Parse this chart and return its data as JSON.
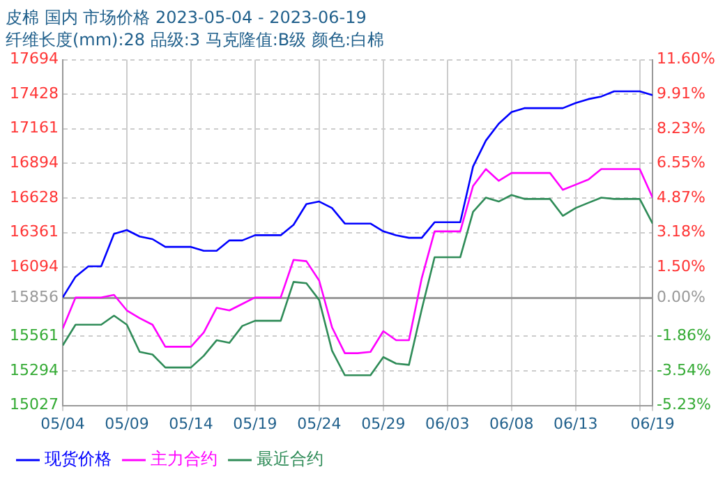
{
  "chart_data": {
    "type": "line",
    "title": "皮棉 国内 市场价格 2023-05-04 - 2023-06-19",
    "subtitle": "纤维长度(mm):28 品级:3 马克隆值:B级 颜色:白棉",
    "x": [
      "2023-05-04",
      "2023-05-05",
      "2023-05-06",
      "2023-05-07",
      "2023-05-08",
      "2023-05-09",
      "2023-05-10",
      "2023-05-11",
      "2023-05-12",
      "2023-05-13",
      "2023-05-14",
      "2023-05-15",
      "2023-05-16",
      "2023-05-17",
      "2023-05-18",
      "2023-05-19",
      "2023-05-20",
      "2023-05-21",
      "2023-05-22",
      "2023-05-23",
      "2023-05-24",
      "2023-05-25",
      "2023-05-26",
      "2023-05-27",
      "2023-05-28",
      "2023-05-29",
      "2023-05-30",
      "2023-05-31",
      "2023-06-01",
      "2023-06-02",
      "2023-06-03",
      "2023-06-04",
      "2023-06-05",
      "2023-06-06",
      "2023-06-07",
      "2023-06-08",
      "2023-06-09",
      "2023-06-10",
      "2023-06-11",
      "2023-06-12",
      "2023-06-13",
      "2023-06-14",
      "2023-06-15",
      "2023-06-16",
      "2023-06-17",
      "2023-06-18",
      "2023-06-19"
    ],
    "series": [
      {
        "name": "现货价格",
        "color": "#0000ff",
        "values": [
          15860,
          16020,
          16100,
          16100,
          16350,
          16380,
          16330,
          16310,
          16250,
          16250,
          16250,
          16220,
          16220,
          16300,
          16300,
          16340,
          16340,
          16340,
          16420,
          16580,
          16600,
          16550,
          16430,
          16430,
          16430,
          16370,
          16340,
          16320,
          16320,
          16440,
          16440,
          16440,
          16870,
          17070,
          17200,
          17290,
          17320,
          17320,
          17320,
          17320,
          17360,
          17390,
          17410,
          17450,
          17450,
          17450,
          17420
        ]
      },
      {
        "name": "主力合约",
        "color": "#ff00ff",
        "values": [
          15620,
          15860,
          15860,
          15860,
          15880,
          15760,
          15700,
          15650,
          15480,
          15480,
          15480,
          15590,
          15780,
          15760,
          15810,
          15860,
          15860,
          15860,
          16150,
          16140,
          15990,
          15630,
          15430,
          15430,
          15440,
          15600,
          15530,
          15530,
          16010,
          16370,
          16370,
          16370,
          16720,
          16850,
          16760,
          16820,
          16820,
          16820,
          16820,
          16690,
          16730,
          16770,
          16850,
          16850,
          16850,
          16850,
          16630
        ]
      },
      {
        "name": "最近合约",
        "color": "#2e8b57",
        "values": [
          15490,
          15650,
          15650,
          15650,
          15720,
          15650,
          15440,
          15420,
          15320,
          15320,
          15320,
          15410,
          15530,
          15510,
          15640,
          15680,
          15680,
          15680,
          15980,
          15970,
          15840,
          15450,
          15260,
          15260,
          15260,
          15400,
          15350,
          15340,
          15770,
          16170,
          16170,
          16170,
          16520,
          16630,
          16600,
          16650,
          16620,
          16620,
          16620,
          16490,
          16550,
          16590,
          16630,
          16620,
          16620,
          16620,
          16430
        ]
      }
    ],
    "xlim": [
      "2023-05-04",
      "2023-06-19"
    ],
    "xticks": [
      {
        "value": "2023-05-04",
        "label": "05/04"
      },
      {
        "value": "2023-05-09",
        "label": "05/09"
      },
      {
        "value": "2023-05-14",
        "label": "05/14"
      },
      {
        "value": "2023-05-19",
        "label": "05/19"
      },
      {
        "value": "2023-05-24",
        "label": "05/24"
      },
      {
        "value": "2023-05-29",
        "label": "05/29"
      },
      {
        "value": "2023-06-03",
        "label": "06/03"
      },
      {
        "value": "2023-06-08",
        "label": "06/08"
      },
      {
        "value": "2023-06-13",
        "label": "06/13"
      },
      {
        "value": "2023-06-18",
        "label": null
      },
      {
        "value": "2023-06-19",
        "label": "06/19"
      }
    ],
    "ylim": [
      15027,
      17694
    ],
    "yticks": [
      15027,
      15294,
      15561,
      15856,
      16094,
      16361,
      16628,
      16894,
      17161,
      17428,
      17694
    ],
    "y2lim": [
      -5.23,
      11.6
    ],
    "y2ticks": [
      {
        "value": -5.23,
        "label": "-5.23%"
      },
      {
        "value": -3.54,
        "label": "-3.54%"
      },
      {
        "value": -1.86,
        "label": "-1.86%"
      },
      {
        "value": 0,
        "label": "0.00%"
      },
      {
        "value": 1.5,
        "label": "1.50%"
      },
      {
        "value": 3.18,
        "label": "3.18%"
      },
      {
        "value": 4.87,
        "label": "4.87%"
      },
      {
        "value": 6.55,
        "label": "6.55%"
      },
      {
        "value": 8.23,
        "label": "8.23%"
      },
      {
        "value": 9.91,
        "label": "9.91%"
      },
      {
        "value": 11.6,
        "label": "11.60%"
      }
    ],
    "ref_lines": [
      {
        "axis": "y",
        "value": 15856,
        "color": "#999999"
      }
    ],
    "grid": true,
    "legend": "bottom",
    "line_style": "solid"
  }
}
